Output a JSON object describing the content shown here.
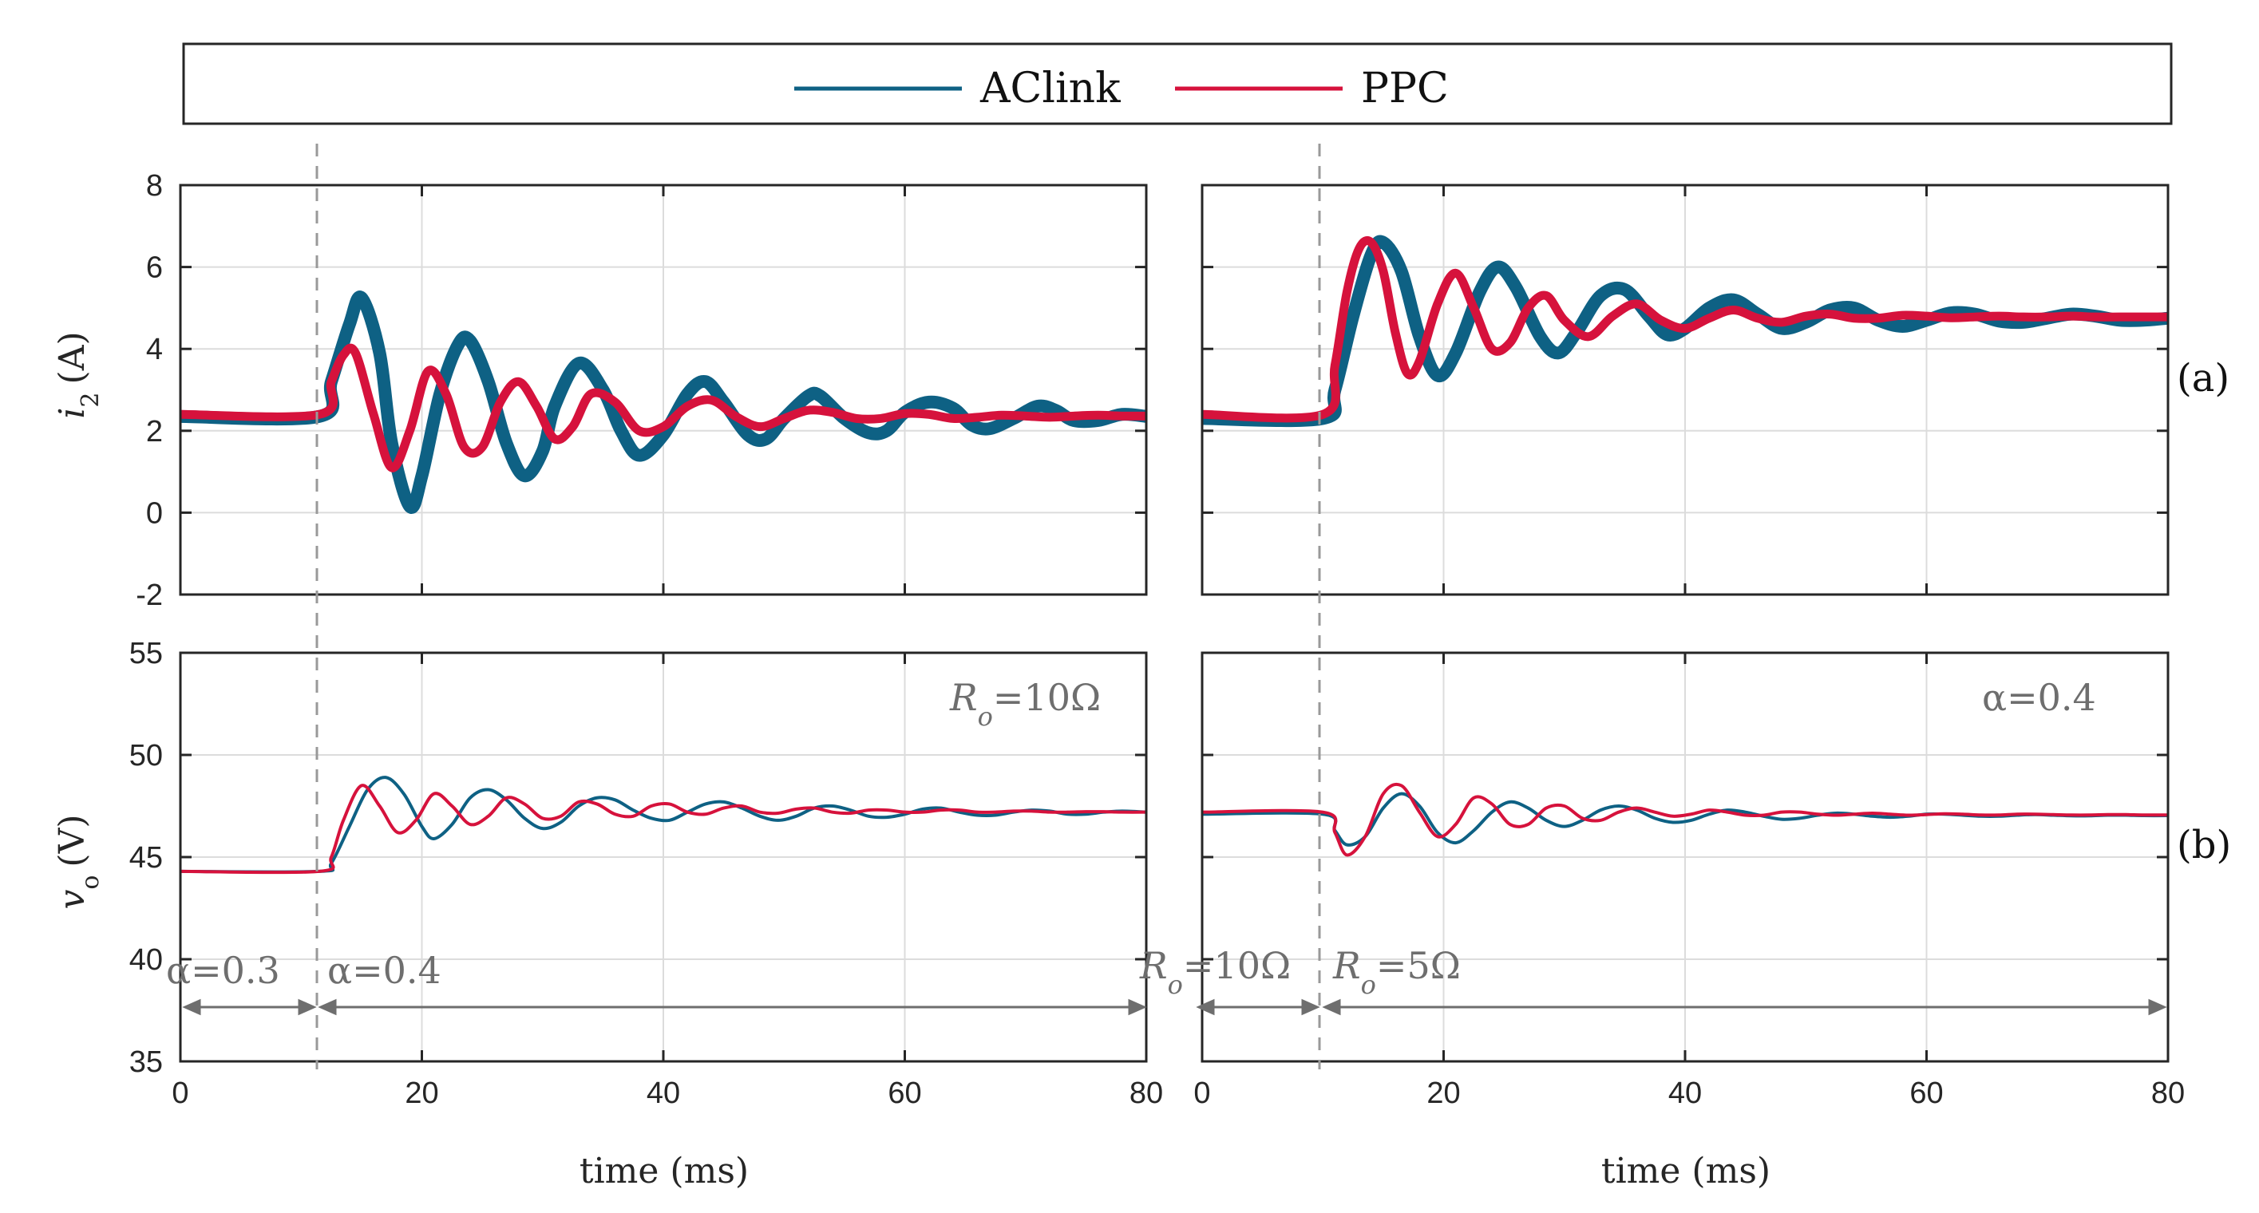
{
  "legend": [
    {
      "label": "AClink",
      "color": "#0e6184"
    },
    {
      "label": "PPC",
      "color": "#d6123c"
    }
  ],
  "panel_tags": {
    "a": "(a)",
    "b": "(b)"
  },
  "axis_labels": {
    "x": "time (ms)",
    "y_top_var": "i",
    "y_top_sub": "2",
    "y_top_unit": "(A)",
    "y_bottom_var": "v",
    "y_bottom_sub": "o",
    "y_bottom_unit": "(V)"
  },
  "annotations": {
    "left_inset_var": "R",
    "left_inset_sub": "o",
    "left_inset_value": "=10Ω",
    "right_inset": "α=0.4",
    "left_before": "α=0.3",
    "left_after": "α=0.4",
    "right_before_var": "R",
    "right_before_sub": "o",
    "right_before_value": "=10Ω",
    "right_after_var": "R",
    "right_after_sub": "o",
    "right_after_value": "=5Ω"
  },
  "chart_data": [
    {
      "id": "top-left",
      "type": "line",
      "title": "",
      "xlabel": "",
      "ylabel": "i2 (A)",
      "xlim": [
        0,
        80
      ],
      "ylim": [
        -2,
        8
      ],
      "xticks": [
        0,
        20,
        40,
        60,
        80
      ],
      "yticks": [
        -2,
        0,
        2,
        4,
        6,
        8
      ],
      "show_xtick_labels": false,
      "show_ytick_labels": true,
      "grid": true,
      "step_time_ms": 11.5,
      "series": [
        {
          "name": "AClink",
          "color": "#0e6184",
          "width": 16,
          "x": [
            0,
            11.5,
            12.5,
            14,
            15,
            16.5,
            17.5,
            19,
            20,
            21.5,
            23,
            24,
            25.5,
            27,
            28.5,
            30,
            31,
            33,
            35,
            36.5,
            38,
            40,
            42,
            43.5,
            45,
            47,
            48.5,
            50,
            52,
            53,
            55,
            57,
            58.5,
            60,
            62,
            64,
            65.5,
            67,
            69,
            71,
            72.5,
            74,
            76,
            78,
            80
          ],
          "y": [
            2.35,
            2.35,
            3.2,
            4.6,
            5.25,
            3.9,
            1.7,
            0.15,
            0.9,
            2.9,
            4.1,
            4.2,
            3.2,
            1.7,
            0.9,
            1.5,
            2.6,
            3.65,
            3.0,
            2.0,
            1.4,
            1.9,
            2.9,
            3.2,
            2.7,
            1.9,
            1.8,
            2.3,
            2.85,
            2.85,
            2.3,
            1.95,
            2.0,
            2.45,
            2.7,
            2.55,
            2.15,
            2.05,
            2.3,
            2.6,
            2.5,
            2.25,
            2.25,
            2.4,
            2.35
          ]
        },
        {
          "name": "PPC",
          "color": "#d6123c",
          "width": 11,
          "x": [
            0,
            11.5,
            12.5,
            13.5,
            14.5,
            16,
            17.5,
            19,
            20.5,
            22,
            23.5,
            25,
            26.5,
            28,
            29.5,
            31,
            32.5,
            34,
            36,
            38,
            40,
            42,
            44,
            46,
            48,
            50,
            52,
            54,
            56,
            58,
            60,
            62,
            64,
            66,
            68,
            70,
            72,
            74,
            76,
            78,
            80
          ],
          "y": [
            2.4,
            2.4,
            3.2,
            3.85,
            3.9,
            2.4,
            1.1,
            2.0,
            3.45,
            2.9,
            1.6,
            1.6,
            2.7,
            3.2,
            2.6,
            1.8,
            2.1,
            2.9,
            2.7,
            2.0,
            2.1,
            2.6,
            2.75,
            2.35,
            2.1,
            2.3,
            2.5,
            2.45,
            2.3,
            2.3,
            2.42,
            2.4,
            2.3,
            2.33,
            2.38,
            2.36,
            2.33,
            2.36,
            2.38,
            2.36,
            2.36
          ]
        }
      ]
    },
    {
      "id": "top-right",
      "type": "line",
      "title": "",
      "xlabel": "",
      "ylabel": "",
      "xlim": [
        0,
        80
      ],
      "ylim": [
        -2,
        8
      ],
      "xticks": [
        0,
        20,
        40,
        60,
        80
      ],
      "yticks": [
        -2,
        0,
        2,
        4,
        6,
        8
      ],
      "show_xtick_labels": false,
      "show_ytick_labels": false,
      "grid": true,
      "step_time_ms": 10,
      "series": [
        {
          "name": "AClink",
          "color": "#0e6184",
          "width": 16,
          "x": [
            0,
            10,
            11,
            12.5,
            14,
            15,
            16.5,
            18,
            19.5,
            21,
            23,
            24.5,
            26,
            28,
            29.5,
            31,
            33,
            35,
            37,
            38.5,
            40,
            42,
            44,
            46,
            48,
            50,
            52,
            54,
            56,
            58,
            60,
            62,
            64,
            66,
            68,
            70,
            72,
            74,
            76,
            78,
            80
          ],
          "y": [
            2.3,
            2.3,
            3.0,
            4.8,
            6.3,
            6.6,
            5.9,
            4.3,
            3.35,
            3.9,
            5.4,
            6.0,
            5.5,
            4.3,
            3.9,
            4.4,
            5.3,
            5.45,
            4.8,
            4.35,
            4.5,
            5.0,
            5.2,
            4.85,
            4.5,
            4.65,
            4.95,
            5.0,
            4.7,
            4.55,
            4.7,
            4.88,
            4.85,
            4.68,
            4.65,
            4.75,
            4.85,
            4.8,
            4.7,
            4.7,
            4.75
          ]
        },
        {
          "name": "PPC",
          "color": "#d6123c",
          "width": 11,
          "x": [
            0,
            10,
            11,
            12,
            13,
            14,
            15,
            16,
            17,
            18,
            19.5,
            21,
            22.5,
            24,
            25.5,
            27,
            28.5,
            30,
            32,
            34,
            36,
            38,
            40,
            42,
            44,
            46,
            48,
            50,
            52,
            54,
            56,
            58,
            60,
            62,
            64,
            66,
            68,
            70,
            72,
            74,
            76,
            78,
            80
          ],
          "y": [
            2.4,
            2.4,
            3.6,
            5.4,
            6.45,
            6.6,
            5.9,
            4.4,
            3.4,
            3.7,
            5.1,
            5.85,
            5.0,
            4.0,
            4.15,
            5.0,
            5.3,
            4.7,
            4.3,
            4.8,
            5.1,
            4.7,
            4.5,
            4.75,
            4.95,
            4.75,
            4.65,
            4.8,
            4.85,
            4.75,
            4.75,
            4.82,
            4.8,
            4.76,
            4.78,
            4.8,
            4.78,
            4.78,
            4.8,
            4.78,
            4.78,
            4.78,
            4.78
          ]
        }
      ]
    },
    {
      "id": "bottom-left",
      "type": "line",
      "title": "",
      "xlabel": "time (ms)",
      "ylabel": "vo (V)",
      "xlim": [
        0,
        80
      ],
      "ylim": [
        35,
        55
      ],
      "xticks": [
        0,
        20,
        40,
        60,
        80
      ],
      "yticks": [
        35,
        40,
        45,
        50,
        55
      ],
      "show_xtick_labels": true,
      "show_ytick_labels": true,
      "grid": true,
      "step_time_ms": 11.5,
      "series": [
        {
          "name": "AClink",
          "color": "#0e6184",
          "width": 4,
          "x": [
            0,
            11.5,
            12.5,
            14,
            15.5,
            17,
            18.5,
            20,
            21,
            22.5,
            24,
            25.5,
            27,
            28.5,
            30,
            31.5,
            33,
            34.5,
            36,
            37.5,
            39,
            40.5,
            42,
            43.5,
            45,
            46.5,
            48,
            49.5,
            51,
            52.5,
            54,
            55.5,
            57,
            58.5,
            60,
            61.5,
            63,
            64.5,
            66,
            67.5,
            69,
            70.5,
            72,
            73.5,
            75,
            76.5,
            78,
            80
          ],
          "y": [
            44.3,
            44.3,
            44.7,
            46.5,
            48.3,
            48.9,
            48.1,
            46.5,
            45.9,
            46.6,
            47.9,
            48.3,
            47.8,
            46.9,
            46.4,
            46.7,
            47.5,
            47.9,
            47.8,
            47.3,
            46.9,
            46.8,
            47.2,
            47.6,
            47.7,
            47.4,
            47.0,
            46.8,
            47.0,
            47.4,
            47.5,
            47.3,
            47.0,
            46.95,
            47.1,
            47.35,
            47.4,
            47.2,
            47.05,
            47.05,
            47.2,
            47.3,
            47.25,
            47.1,
            47.1,
            47.2,
            47.25,
            47.2
          ]
        },
        {
          "name": "PPC",
          "color": "#d6123c",
          "width": 4,
          "x": [
            0,
            11.5,
            12.5,
            13.5,
            15,
            16.5,
            18,
            19.5,
            21,
            22.5,
            24,
            25.5,
            27,
            28.5,
            30,
            31.5,
            33,
            34.5,
            36,
            37.5,
            39,
            40.5,
            42,
            43.5,
            45,
            46.5,
            48,
            49.5,
            51,
            52.5,
            54,
            55.5,
            57,
            58.5,
            60,
            61.5,
            63,
            64.5,
            66,
            67.5,
            69,
            70.5,
            72,
            73.5,
            75,
            76.5,
            78,
            80
          ],
          "y": [
            44.3,
            44.3,
            45.0,
            46.8,
            48.5,
            47.5,
            46.2,
            46.8,
            48.1,
            47.5,
            46.6,
            47.0,
            47.9,
            47.6,
            46.9,
            47.0,
            47.7,
            47.6,
            47.1,
            47.0,
            47.5,
            47.6,
            47.2,
            47.1,
            47.4,
            47.5,
            47.2,
            47.15,
            47.35,
            47.4,
            47.2,
            47.15,
            47.3,
            47.3,
            47.2,
            47.2,
            47.3,
            47.3,
            47.2,
            47.2,
            47.25,
            47.25,
            47.2,
            47.2,
            47.22,
            47.22,
            47.2,
            47.2
          ]
        }
      ]
    },
    {
      "id": "bottom-right",
      "type": "line",
      "title": "",
      "xlabel": "time (ms)",
      "ylabel": "",
      "xlim": [
        0,
        80
      ],
      "ylim": [
        35,
        55
      ],
      "xticks": [
        0,
        20,
        40,
        60,
        80
      ],
      "yticks": [
        35,
        40,
        45,
        50,
        55
      ],
      "show_xtick_labels": true,
      "show_ytick_labels": false,
      "grid": true,
      "step_time_ms": 10,
      "series": [
        {
          "name": "AClink",
          "color": "#0e6184",
          "width": 4,
          "x": [
            0,
            10,
            11,
            12,
            13.5,
            15,
            16.5,
            18,
            19.5,
            21,
            22.5,
            24,
            25.5,
            27,
            28.5,
            30,
            31.5,
            33,
            34.5,
            36,
            37.5,
            39,
            40.5,
            42,
            43.5,
            45,
            46.5,
            48,
            49.5,
            51,
            52.5,
            54,
            55.5,
            57,
            58.5,
            60,
            61.5,
            63,
            64.5,
            66,
            67.5,
            69,
            70.5,
            72,
            73.5,
            75,
            76.5,
            78,
            80
          ],
          "y": [
            47.1,
            47.1,
            46.3,
            45.6,
            46.0,
            47.4,
            48.1,
            47.5,
            46.2,
            45.7,
            46.3,
            47.2,
            47.7,
            47.4,
            46.8,
            46.5,
            46.8,
            47.3,
            47.5,
            47.3,
            46.9,
            46.7,
            46.8,
            47.1,
            47.3,
            47.2,
            47.0,
            46.85,
            46.9,
            47.05,
            47.15,
            47.1,
            47.0,
            46.95,
            47.0,
            47.1,
            47.1,
            47.05,
            47.0,
            47.0,
            47.05,
            47.08,
            47.05,
            47.02,
            47.02,
            47.05,
            47.05,
            47.03,
            47.03
          ]
        },
        {
          "name": "PPC",
          "color": "#d6123c",
          "width": 4,
          "x": [
            0,
            10,
            11,
            12,
            13.5,
            15,
            16.5,
            18,
            19.5,
            21,
            22.5,
            24,
            25.5,
            27,
            28.5,
            30,
            31.5,
            33,
            34.5,
            36,
            37.5,
            39,
            40.5,
            42,
            43.5,
            45,
            46.5,
            48,
            49.5,
            51,
            52.5,
            54,
            55.5,
            57,
            58.5,
            60,
            61.5,
            63,
            64.5,
            66,
            67.5,
            69,
            70.5,
            72,
            73.5,
            75,
            76.5,
            78,
            80
          ],
          "y": [
            47.2,
            47.2,
            46.2,
            45.1,
            46.0,
            48.1,
            48.5,
            47.2,
            46.0,
            46.6,
            47.9,
            47.6,
            46.6,
            46.6,
            47.4,
            47.5,
            46.9,
            46.8,
            47.2,
            47.4,
            47.2,
            47.0,
            47.1,
            47.3,
            47.2,
            47.05,
            47.05,
            47.2,
            47.2,
            47.1,
            47.05,
            47.1,
            47.15,
            47.1,
            47.05,
            47.08,
            47.12,
            47.1,
            47.06,
            47.06,
            47.1,
            47.1,
            47.08,
            47.06,
            47.06,
            47.08,
            47.08,
            47.06,
            47.06
          ]
        }
      ]
    }
  ]
}
